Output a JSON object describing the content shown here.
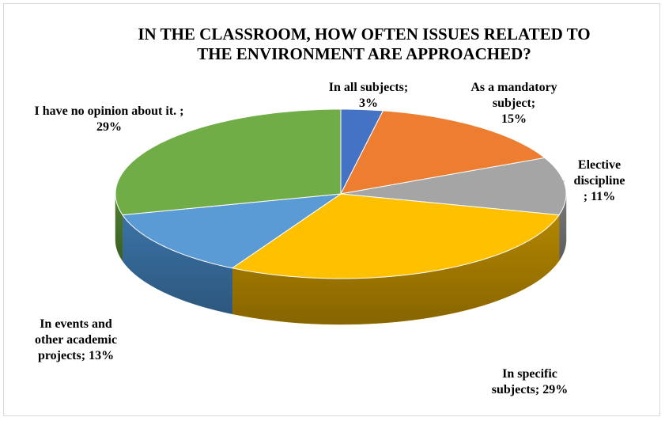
{
  "chart_data": {
    "type": "pie",
    "title_lines": [
      "IN THE CLASSROOM, HOW OFTEN ISSUES RELATED TO",
      "THE ENVIRONMENT ARE APPROACHED?"
    ],
    "slices": [
      {
        "name": "In all subjects",
        "value": 3,
        "color": "#4472c4",
        "side": "#2f5597",
        "label_lines": [
          "In all subjects;",
          "3%"
        ]
      },
      {
        "name": "As a mandatory subject",
        "value": 15,
        "color": "#ed7d31",
        "side": "#b35a1f",
        "label_lines": [
          "As a mandatory",
          "subject;",
          "15%"
        ]
      },
      {
        "name": "Elective discipline",
        "value": 11,
        "color": "#a5a5a5",
        "side": "#7a7a7a",
        "label_lines": [
          "Elective",
          "discipline",
          "; 11%"
        ]
      },
      {
        "name": "In specific subjects",
        "value": 29,
        "color": "#ffc000",
        "side": "#b38600",
        "label_lines": [
          "In specific",
          "subjects; 29%"
        ]
      },
      {
        "name": "In events and other academic projects",
        "value": 13,
        "color": "#5b9bd5",
        "side": "#3b73a6",
        "label_lines": [
          "In events and",
          "other academic",
          "projects; 13%"
        ]
      },
      {
        "name": "I have no opinion about it.",
        "value": 29,
        "color": "#70ad47",
        "side": "#4e7f31",
        "label_lines": [
          "I have no opinion about it. ;",
          "29%"
        ]
      }
    ],
    "legend": "none",
    "style": "3d-pie"
  }
}
